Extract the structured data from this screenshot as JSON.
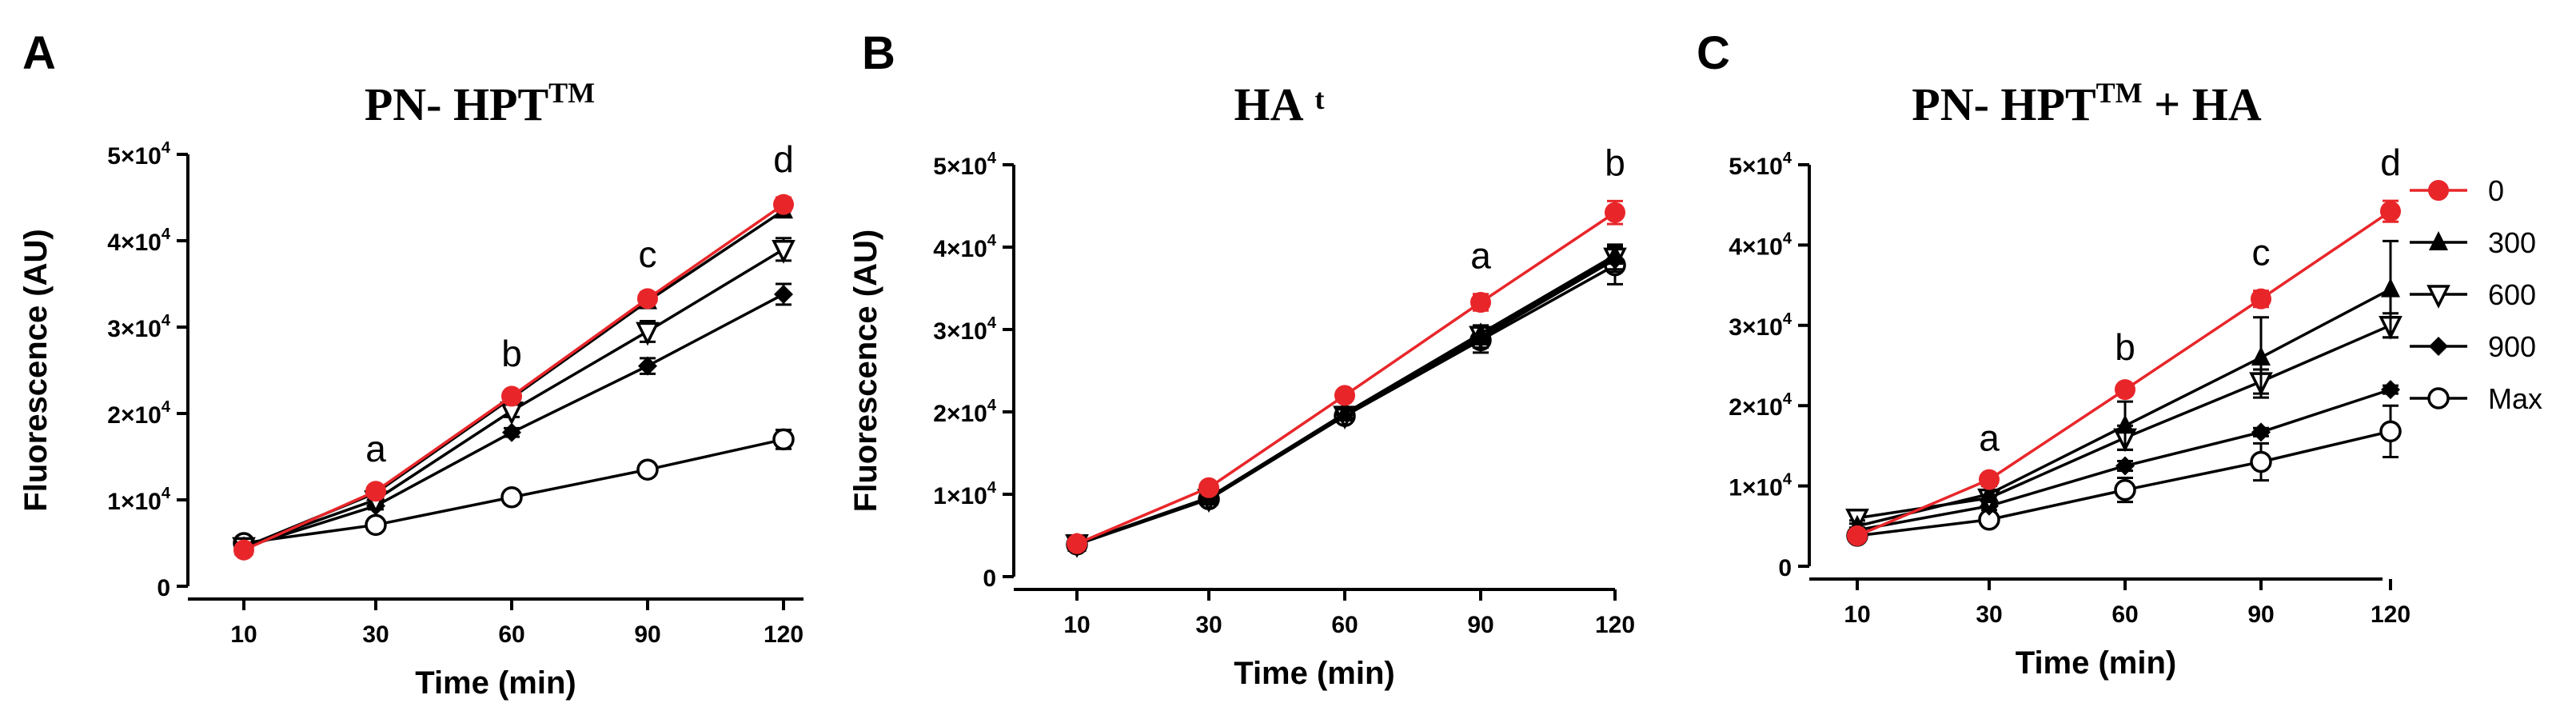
{
  "colors": {
    "series_0": "#e8262a",
    "other": "#000000"
  },
  "chart_data": [
    {
      "type": "line",
      "panel": "A",
      "title_main": "PN- HPT",
      "title_sup": "TM",
      "title_suffix": "",
      "xlabel": "Time (min)",
      "ylabel": "Fluorescence (AU)",
      "categories": [
        "10",
        "30",
        "60",
        "90",
        "120"
      ],
      "ylim": [
        0,
        50000
      ],
      "yticks": [
        {
          "value": 0,
          "base": "0",
          "exp": ""
        },
        {
          "value": 10000,
          "base": "1×10",
          "exp": "4"
        },
        {
          "value": 20000,
          "base": "2×10",
          "exp": "4"
        },
        {
          "value": 30000,
          "base": "3×10",
          "exp": "4"
        },
        {
          "value": 40000,
          "base": "4×10",
          "exp": "4"
        },
        {
          "value": 50000,
          "base": "5×10",
          "exp": "4"
        }
      ],
      "annotations": [
        {
          "category": "30",
          "text": "a"
        },
        {
          "category": "60",
          "text": "b"
        },
        {
          "category": "90",
          "text": "c"
        },
        {
          "category": "120",
          "text": "d"
        }
      ],
      "series": [
        {
          "name": "0",
          "marker": "circle-filled",
          "color": "#e8262a",
          "values": [
            4200,
            11000,
            22000,
            33300,
            44200
          ],
          "errors": [
            400,
            500,
            500,
            700,
            800
          ]
        },
        {
          "name": "300",
          "marker": "triangle-up-filled",
          "color": "#000000",
          "values": [
            4500,
            10800,
            21800,
            33000,
            43500
          ],
          "errors": [
            300,
            400,
            500,
            600,
            700
          ]
        },
        {
          "name": "600",
          "marker": "triangle-down-open",
          "color": "#000000",
          "values": [
            4600,
            10000,
            20300,
            29500,
            39000
          ],
          "errors": [
            300,
            500,
            700,
            1200,
            1300
          ]
        },
        {
          "name": "900",
          "marker": "diamond-filled",
          "color": "#000000",
          "values": [
            4500,
            9300,
            17800,
            25500,
            33800
          ],
          "errors": [
            300,
            400,
            500,
            900,
            1200
          ]
        },
        {
          "name": "Max",
          "marker": "circle-open",
          "color": "#000000",
          "values": [
            5000,
            7100,
            10300,
            13500,
            17000
          ],
          "errors": [
            300,
            400,
            400,
            700,
            1100
          ]
        }
      ]
    },
    {
      "type": "line",
      "panel": "B",
      "title_main": "HA",
      "title_sup": "",
      "title_suffix": "t",
      "xlabel": "Time (min)",
      "ylabel": "Fluorescence (AU)",
      "categories": [
        "10",
        "30",
        "60",
        "90",
        "120"
      ],
      "ylim": [
        0,
        50000
      ],
      "yticks": [
        {
          "value": 0,
          "base": "0",
          "exp": ""
        },
        {
          "value": 10000,
          "base": "1×10",
          "exp": "4"
        },
        {
          "value": 20000,
          "base": "2×10",
          "exp": "4"
        },
        {
          "value": 30000,
          "base": "3×10",
          "exp": "4"
        },
        {
          "value": 40000,
          "base": "4×10",
          "exp": "4"
        },
        {
          "value": 50000,
          "base": "5×10",
          "exp": "4"
        }
      ],
      "annotations": [
        {
          "category": "90",
          "text": "a"
        },
        {
          "category": "120",
          "text": "b"
        }
      ],
      "series": [
        {
          "name": "0",
          "marker": "circle-filled",
          "color": "#e8262a",
          "values": [
            4000,
            10800,
            22000,
            33300,
            44200
          ],
          "errors": [
            300,
            400,
            400,
            1000,
            1400
          ]
        },
        {
          "name": "300",
          "marker": "triangle-up-filled",
          "color": "#000000",
          "values": [
            4000,
            9600,
            19800,
            29500,
            39000
          ],
          "errors": [
            300,
            300,
            500,
            1000,
            1000
          ]
        },
        {
          "name": "600",
          "marker": "triangle-down-open",
          "color": "#000000",
          "values": [
            4000,
            9500,
            19600,
            29300,
            38800
          ],
          "errors": [
            300,
            300,
            500,
            1100,
            1500
          ]
        },
        {
          "name": "900",
          "marker": "diamond-filled",
          "color": "#000000",
          "values": [
            4000,
            9500,
            19700,
            29000,
            38500
          ],
          "errors": [
            300,
            300,
            500,
            1200,
            1500
          ]
        },
        {
          "name": "Max",
          "marker": "circle-open",
          "color": "#000000",
          "values": [
            3900,
            9400,
            19500,
            28700,
            37800
          ],
          "errors": [
            300,
            300,
            500,
            1500,
            2300
          ]
        }
      ]
    },
    {
      "type": "line",
      "panel": "C",
      "title_main": "PN- HPT",
      "title_sup": "TM",
      "title_suffix": " + HA",
      "xlabel": "Time (min)",
      "ylabel": "",
      "categories": [
        "10",
        "30",
        "60",
        "90",
        "120"
      ],
      "ylim": [
        0,
        50000
      ],
      "yticks": [
        {
          "value": 0,
          "base": "0",
          "exp": ""
        },
        {
          "value": 10000,
          "base": "1×10",
          "exp": "4"
        },
        {
          "value": 20000,
          "base": "2×10",
          "exp": "4"
        },
        {
          "value": 30000,
          "base": "3×10",
          "exp": "4"
        },
        {
          "value": 40000,
          "base": "4×10",
          "exp": "4"
        },
        {
          "value": 50000,
          "base": "5×10",
          "exp": "4"
        }
      ],
      "annotations": [
        {
          "category": "30",
          "text": "a"
        },
        {
          "category": "60",
          "text": "b"
        },
        {
          "category": "90",
          "text": "c"
        },
        {
          "category": "120",
          "text": "d"
        }
      ],
      "legend": {
        "placement": "right"
      },
      "series": [
        {
          "name": "0",
          "marker": "circle-filled",
          "color": "#e8262a",
          "values": [
            3800,
            10800,
            22000,
            33300,
            44200
          ],
          "errors": [
            300,
            400,
            500,
            1000,
            1300
          ]
        },
        {
          "name": "300",
          "marker": "triangle-up-filled",
          "color": "#000000",
          "values": [
            5000,
            9000,
            17500,
            26000,
            34500
          ],
          "errors": [
            300,
            1000,
            3000,
            5000,
            6000
          ]
        },
        {
          "name": "600",
          "marker": "triangle-down-open",
          "color": "#000000",
          "values": [
            6000,
            8500,
            16000,
            23000,
            30000
          ],
          "errors": [
            300,
            800,
            1500,
            1500,
            1500
          ]
        },
        {
          "name": "900",
          "marker": "diamond-filled",
          "color": "#000000",
          "values": [
            4500,
            7500,
            12500,
            16700,
            22000
          ],
          "errors": [
            300,
            500,
            600,
            500,
            500
          ]
        },
        {
          "name": "Max",
          "marker": "circle-open",
          "color": "#000000",
          "values": [
            3800,
            5800,
            9500,
            13000,
            16800
          ],
          "errors": [
            300,
            400,
            1500,
            2300,
            3200
          ]
        }
      ]
    }
  ]
}
